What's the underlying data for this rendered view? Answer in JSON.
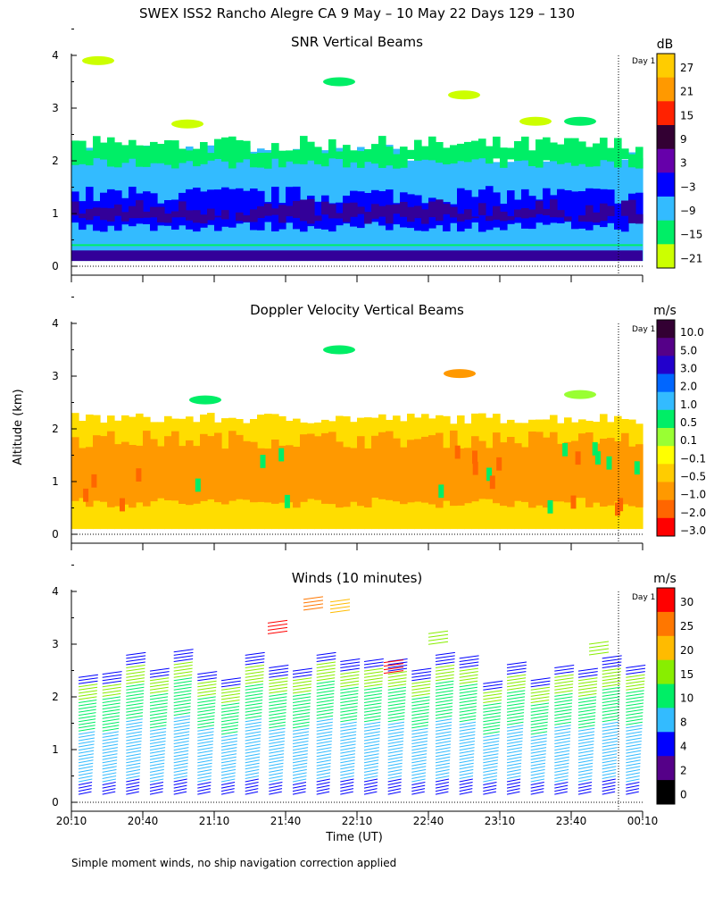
{
  "title": "SWEX ISS2 Rancho Alegre CA   9 May – 10 May 22 Days 129 – 130",
  "footnote": "Simple moment winds, no ship navigation correction applied",
  "day_marker_label": "Day 1",
  "chart_data": [
    {
      "type": "heatmap",
      "title": "SNR Vertical Beams",
      "xlabel": "",
      "ylabel": "",
      "ylim": [
        0,
        4
      ],
      "yticks": [
        "0",
        "1",
        "2",
        "3",
        "4"
      ],
      "colorbar_unit": "dB",
      "colorbar_labels": [
        "27",
        "21",
        "15",
        "9",
        "3",
        "−3",
        "−9",
        "−15",
        "−21"
      ],
      "colorbar_colors": [
        "#ffcc00",
        "#ff9900",
        "#ff2200",
        "#330033",
        "#6600aa",
        "#0000ff",
        "#33bbff",
        "#00ee66",
        "#ccff00"
      ],
      "layers": [
        {
          "name": "background",
          "top_km": 2.2,
          "bottom_km": 0.1,
          "color": "#33bbff"
        },
        {
          "name": "upper edge",
          "top_km": 2.3,
          "bottom_km": 1.95,
          "color": "#00ee66"
        },
        {
          "name": "dark core",
          "top_km": 1.35,
          "bottom_km": 0.75,
          "color": "#0000ff"
        },
        {
          "name": "deep core",
          "top_km": 1.1,
          "bottom_km": 0.9,
          "color": "#330099"
        }
      ]
    },
    {
      "type": "heatmap",
      "title": "Doppler Velocity Vertical Beams",
      "xlabel": "",
      "ylabel": "Altitude (km)",
      "ylim": [
        0,
        4
      ],
      "yticks": [
        "0",
        "1",
        "2",
        "3",
        "4"
      ],
      "colorbar_unit": "m/s",
      "colorbar_labels": [
        "10.0",
        "5.0",
        "3.0",
        "2.0",
        "1.0",
        "0.5",
        "0.1",
        "−0.1",
        "−0.5",
        "−1.0",
        "−2.0",
        "−3.0"
      ],
      "colorbar_colors": [
        "#330033",
        "#550088",
        "#2200cc",
        "#0066ff",
        "#33bbff",
        "#00ee66",
        "#99ff33",
        "#ffff00",
        "#ffcc00",
        "#ff9900",
        "#ff6600",
        "#ff0000"
      ],
      "layers": [
        {
          "name": "background",
          "top_km": 2.2,
          "bottom_km": 0.1,
          "color": "#ffdd00"
        },
        {
          "name": "orange core",
          "top_km": 1.8,
          "bottom_km": 0.6,
          "color": "#ff9900"
        }
      ]
    },
    {
      "type": "scatter",
      "title": "Winds (10 minutes)",
      "xlabel": "Time (UT)",
      "ylabel": "",
      "ylim": [
        0,
        4
      ],
      "yticks": [
        "0",
        "1",
        "2",
        "3",
        "4"
      ],
      "xticks": [
        "20:10",
        "20:40",
        "21:10",
        "21:40",
        "22:10",
        "22:40",
        "23:10",
        "23:40",
        "00:10"
      ],
      "colorbar_unit": "m/s",
      "colorbar_labels": [
        "30",
        "25",
        "20",
        "15",
        "10",
        "8",
        "4",
        "2",
        "0"
      ],
      "colorbar_colors": [
        "#ff0000",
        "#ff7700",
        "#ffbb00",
        "#88ee00",
        "#00ee66",
        "#33bbff",
        "#0000ff",
        "#550088",
        "#000000"
      ],
      "profile_count": 24
    }
  ]
}
